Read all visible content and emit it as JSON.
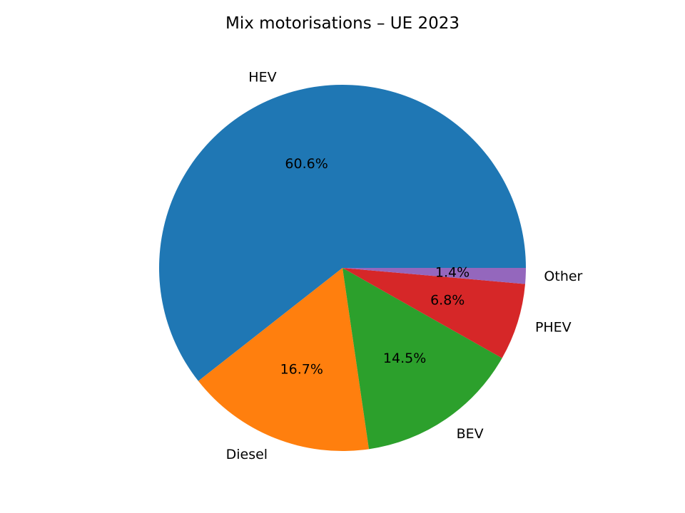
{
  "chart_data": {
    "type": "pie",
    "title": "Mix motorisations – UE 2023",
    "categories": [
      "HEV",
      "Diesel",
      "BEV",
      "PHEV",
      "Other"
    ],
    "values": [
      60.6,
      16.7,
      14.5,
      6.8,
      1.4
    ],
    "value_labels": [
      "60.6%",
      "16.7%",
      "14.5%",
      "6.8%",
      "1.4%"
    ],
    "colors": [
      "#1f77b4",
      "#ff7f0e",
      "#2ca02c",
      "#d62728",
      "#9467bd"
    ],
    "start_angle_deg": 0,
    "direction": "counterclockwise",
    "legend": "none"
  }
}
